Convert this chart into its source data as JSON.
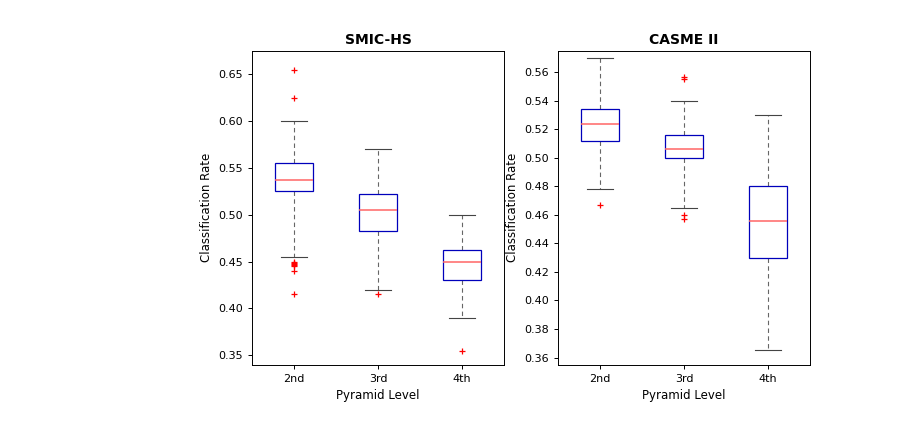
{
  "smic_hs": {
    "title": "SMIC-HS",
    "xlabel": "Pyramid Level",
    "ylabel": "Classification Rate",
    "categories": [
      "2nd",
      "3rd",
      "4th"
    ],
    "boxes": [
      {
        "q1": 0.525,
        "median": 0.537,
        "q3": 0.555,
        "whislo": 0.455,
        "whishi": 0.6,
        "fliers_above": [
          0.625,
          0.655
        ],
        "fliers_below": [
          0.45,
          0.448,
          0.447,
          0.446,
          0.445,
          0.44,
          0.415
        ]
      },
      {
        "q1": 0.483,
        "median": 0.505,
        "q3": 0.522,
        "whislo": 0.42,
        "whishi": 0.57,
        "fliers_above": [],
        "fliers_below": [
          0.415
        ]
      },
      {
        "q1": 0.43,
        "median": 0.45,
        "q3": 0.462,
        "whislo": 0.39,
        "whishi": 0.5,
        "fliers_above": [],
        "fliers_below": [
          0.355
        ]
      }
    ],
    "ylim": [
      0.34,
      0.675
    ],
    "yticks": [
      0.35,
      0.4,
      0.45,
      0.5,
      0.55,
      0.6,
      0.65
    ]
  },
  "casme_ii": {
    "title": "CASME II",
    "xlabel": "Pyramid Level",
    "ylabel": "Classification Rate",
    "categories": [
      "2nd",
      "3rd",
      "4th"
    ],
    "boxes": [
      {
        "q1": 0.512,
        "median": 0.524,
        "q3": 0.534,
        "whislo": 0.478,
        "whishi": 0.57,
        "fliers_above": [],
        "fliers_below": [
          0.467
        ]
      },
      {
        "q1": 0.5,
        "median": 0.506,
        "q3": 0.516,
        "whislo": 0.465,
        "whishi": 0.54,
        "fliers_above": [
          0.555,
          0.557
        ],
        "fliers_below": [
          0.46,
          0.457
        ]
      },
      {
        "q1": 0.43,
        "median": 0.456,
        "q3": 0.48,
        "whislo": 0.365,
        "whishi": 0.53,
        "fliers_above": [],
        "fliers_below": []
      }
    ],
    "ylim": [
      0.355,
      0.575
    ],
    "yticks": [
      0.36,
      0.38,
      0.4,
      0.42,
      0.44,
      0.46,
      0.48,
      0.5,
      0.52,
      0.54,
      0.56
    ]
  },
  "box_color": "#0000bb",
  "median_color": "#ff6666",
  "flier_color": "#ff0000",
  "whisker_color": "#666666",
  "cap_color": "#444444",
  "bg_color": "#ffffff"
}
